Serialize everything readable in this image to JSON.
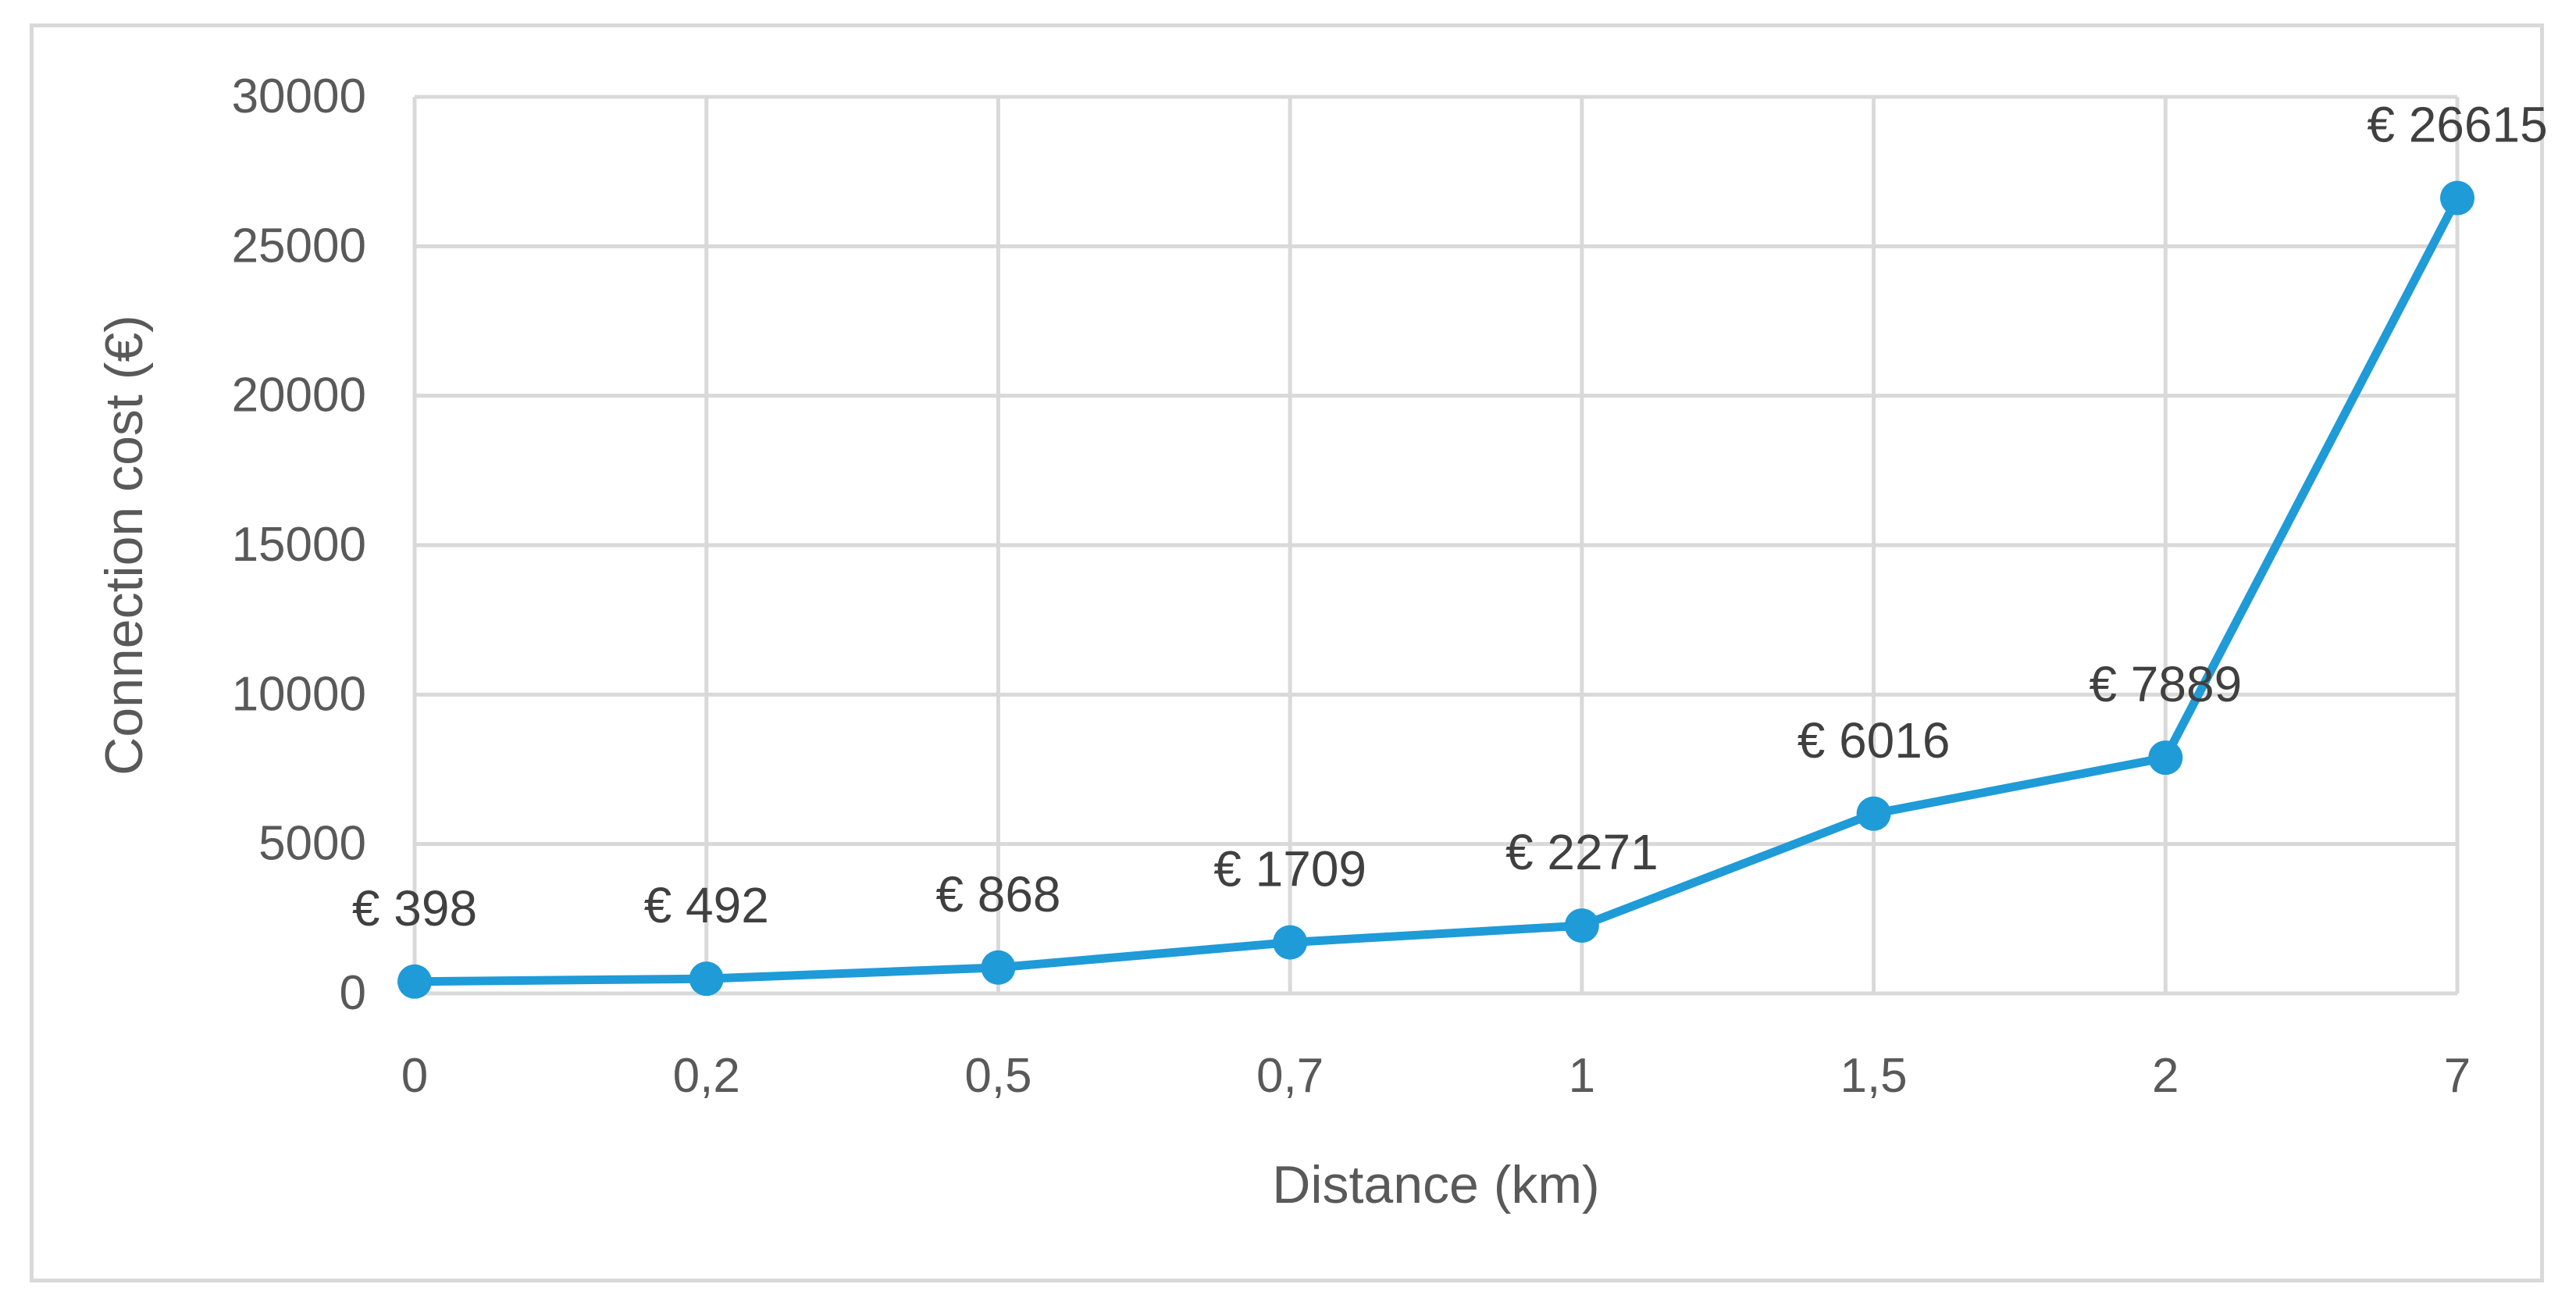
{
  "chart_data": {
    "type": "line",
    "title": "",
    "xlabel": "Distance (km)",
    "ylabel": "Connection cost (€)",
    "categories": [
      "0",
      "0,2",
      "0,5",
      "0,7",
      "1",
      "1,5",
      "2",
      "7"
    ],
    "series": [
      {
        "values": [
          398,
          492,
          868,
          1709,
          2271,
          6016,
          7889,
          26615
        ],
        "data_labels": [
          "€ 398",
          "€ 492",
          "€ 868",
          "€ 1709",
          "€ 2271",
          "€ 6016",
          "€ 7889",
          "€ 26615"
        ]
      }
    ],
    "ylim": [
      0,
      30000
    ],
    "yticks": [
      "0",
      "5000",
      "10000",
      "15000",
      "20000",
      "25000",
      "30000"
    ],
    "ytick_values": [
      0,
      5000,
      10000,
      15000,
      20000,
      25000,
      30000
    ],
    "grid": true,
    "legend": "none",
    "colors": {
      "series_line": "#1f9bd7",
      "gridline": "#d9d9d9",
      "axis_text": "#595959",
      "frame_border": "#d9d9d9"
    }
  }
}
